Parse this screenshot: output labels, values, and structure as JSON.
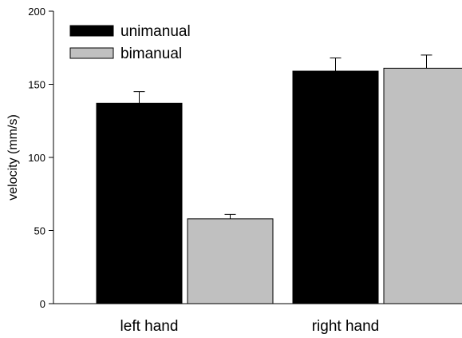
{
  "chart_data": {
    "type": "bar",
    "categories": [
      "left hand",
      "right hand"
    ],
    "series": [
      {
        "name": "unimanual",
        "color": "#000000",
        "values": [
          137,
          159
        ],
        "errors": [
          8,
          9
        ]
      },
      {
        "name": "bimanual",
        "color": "#c0c0c0",
        "values": [
          58,
          161
        ],
        "errors": [
          3,
          9
        ]
      }
    ],
    "title": "",
    "xlabel": "",
    "ylabel": "velocity (mm/s)",
    "ylim": [
      0,
      200
    ],
    "yticks": [
      0,
      50,
      100,
      150,
      200
    ],
    "grid": false,
    "legend_position": "top-left"
  }
}
